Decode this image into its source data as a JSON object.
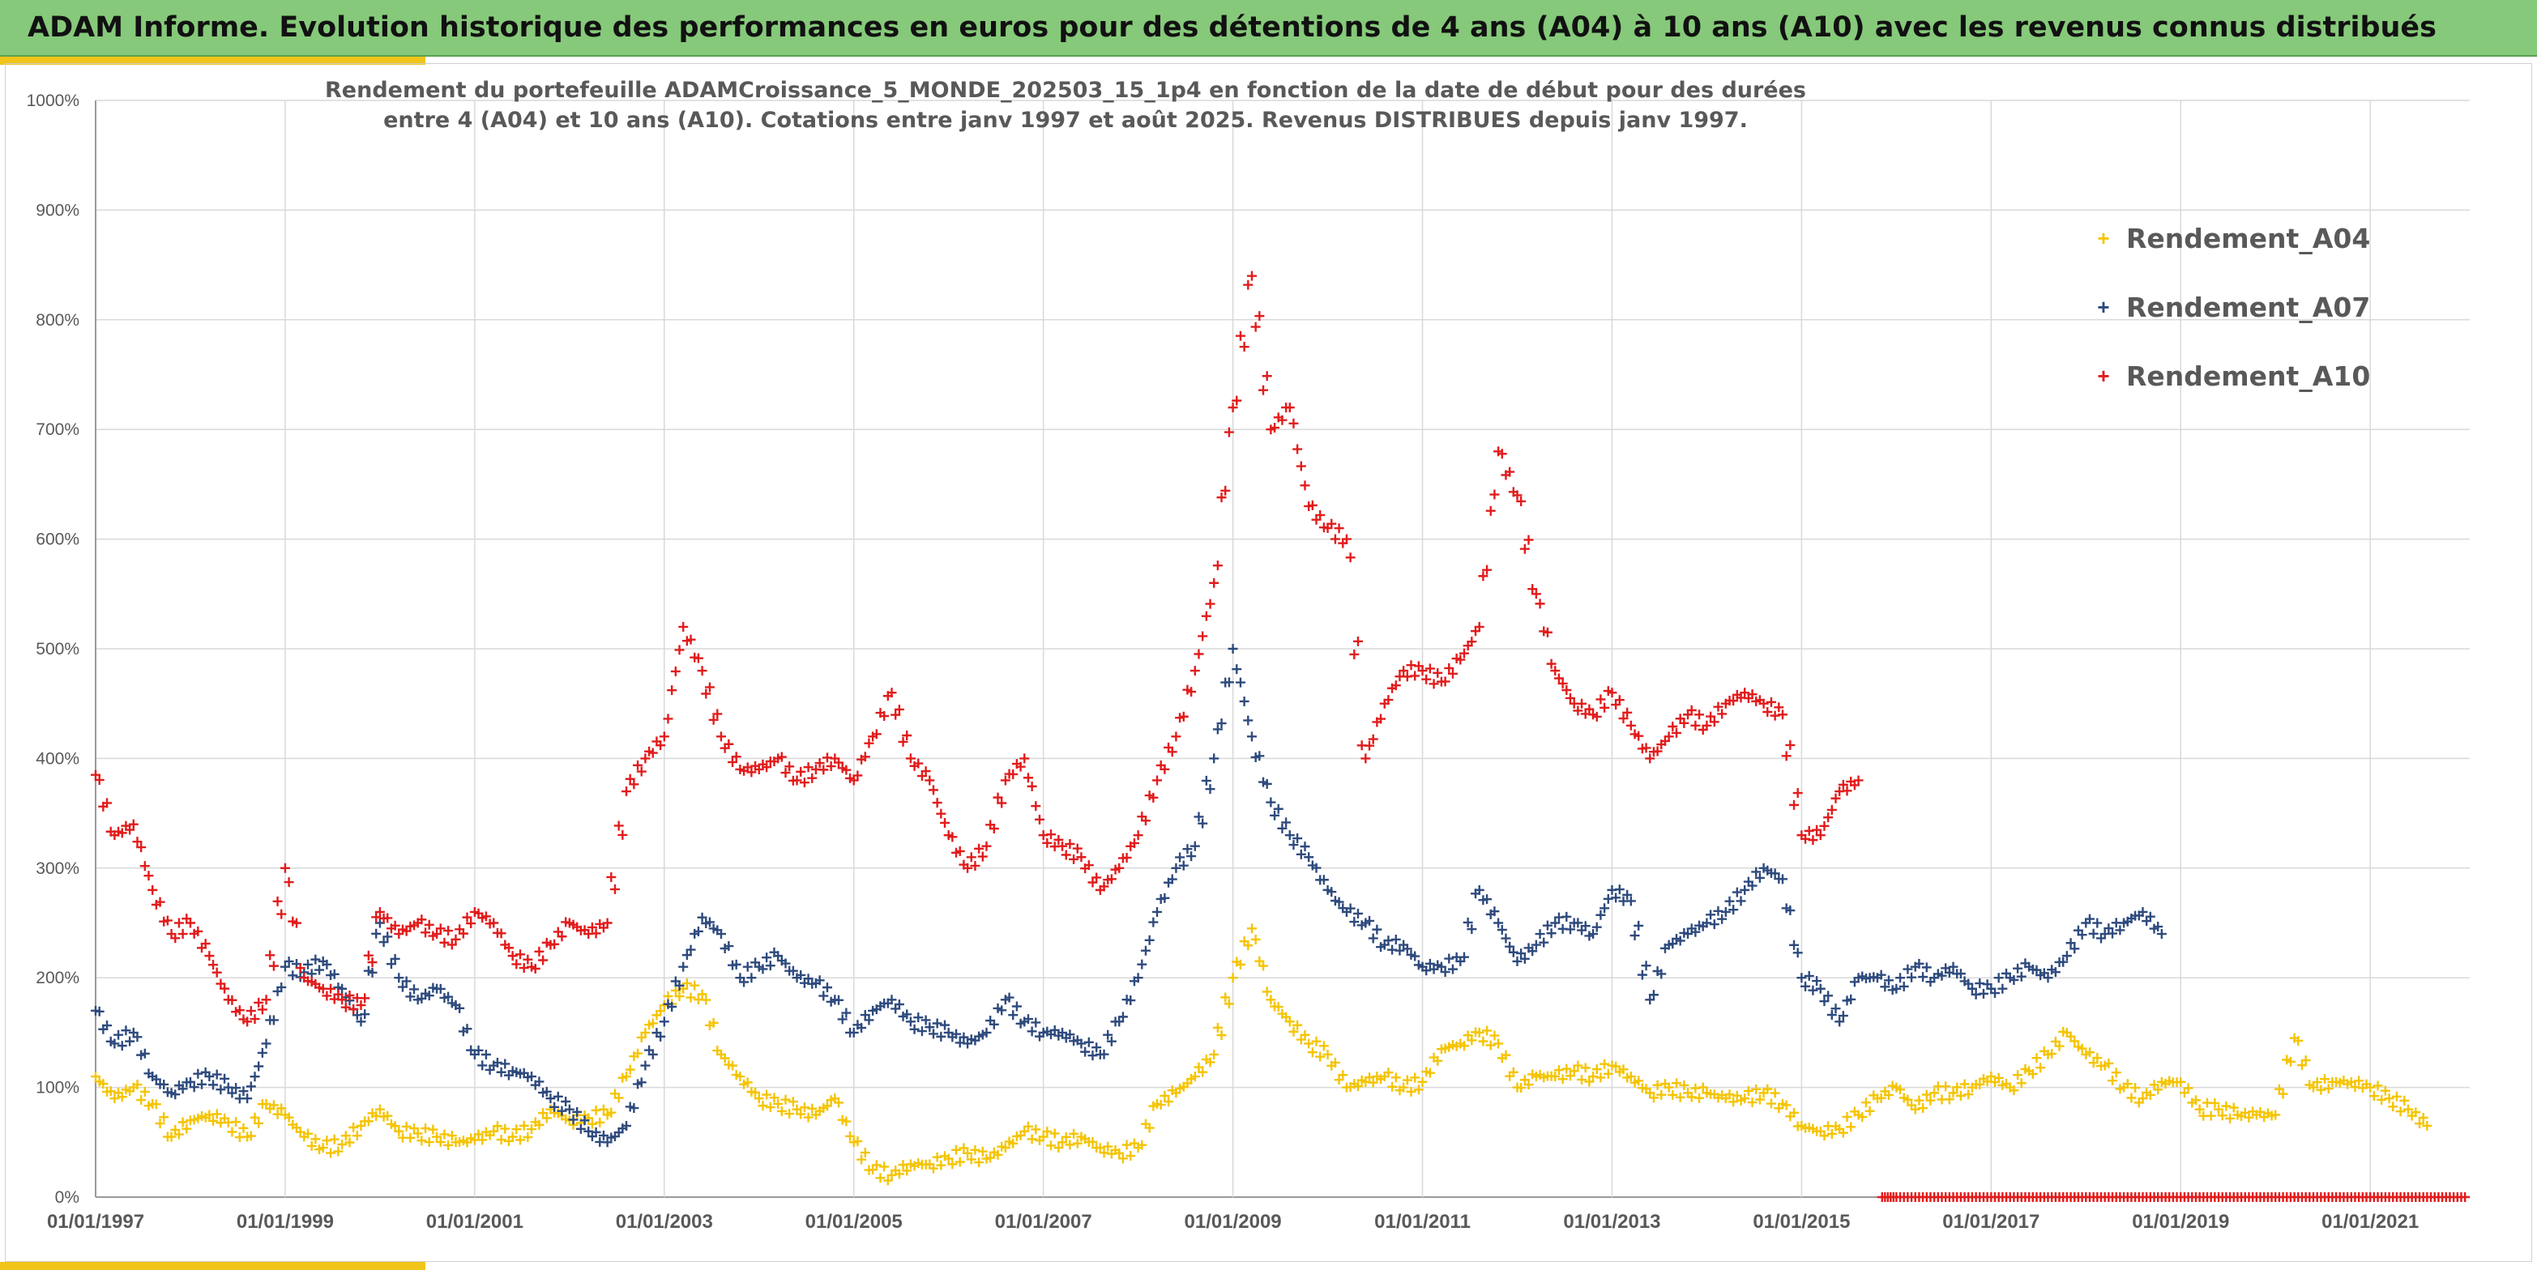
{
  "banner": {
    "title": "ADAM Informe. Evolution historique des performances en euros pour des détentions de 4 ans (A04) à 10 ans (A10) avec les revenus connus distribués",
    "background": "#86c97a",
    "accent": "#f0c419"
  },
  "chart_data": {
    "type": "scatter",
    "title_line1": "Rendement du portefeuille ADAMCroissance_5_MONDE_202503_15_1p4  en fonction de la date de début pour des durées",
    "title_line2": "entre 4 (A04) et 10 ans (A10). Cotations entre janv 1997 et août 2025. Revenus DISTRIBUES depuis janv 1997.",
    "xlim": [
      1997.0,
      2022.05
    ],
    "ylim": [
      0,
      1000
    ],
    "y_unit": "%",
    "y_ticks": [
      0,
      100,
      200,
      300,
      400,
      500,
      600,
      700,
      800,
      900,
      1000
    ],
    "y_tick_labels": [
      "0%",
      "100%",
      "200%",
      "300%",
      "400%",
      "500%",
      "600%",
      "700%",
      "800%",
      "900%",
      "1000%"
    ],
    "x_ticks": [
      1997,
      1999,
      2001,
      2003,
      2005,
      2007,
      2009,
      2011,
      2013,
      2015,
      2017,
      2019,
      2021
    ],
    "x_tick_labels": [
      "01/01/1997",
      "01/01/1999",
      "01/01/2001",
      "01/01/2003",
      "01/01/2005",
      "01/01/2007",
      "01/01/2009",
      "01/01/2011",
      "01/01/2013",
      "01/01/2015",
      "01/01/2017",
      "01/01/2019",
      "01/01/2021"
    ],
    "grid": true,
    "marker": "+",
    "legend_position": "top-right",
    "series": [
      {
        "name": "Rendement_A04",
        "color": "#f5c400",
        "x": [
          1997.0,
          1997.2,
          1997.4,
          1997.6,
          1997.8,
          1998.0,
          1998.2,
          1998.4,
          1998.6,
          1998.8,
          1999.0,
          1999.2,
          1999.4,
          1999.6,
          1999.8,
          2000.0,
          2000.2,
          2000.4,
          2000.6,
          2000.8,
          2001.0,
          2001.2,
          2001.4,
          2001.6,
          2001.8,
          2002.0,
          2002.2,
          2002.4,
          2002.6,
          2002.8,
          2003.0,
          2003.2,
          2003.4,
          2003.6,
          2003.8,
          2004.0,
          2004.2,
          2004.4,
          2004.6,
          2004.8,
          2005.0,
          2005.2,
          2005.4,
          2005.6,
          2005.8,
          2006.0,
          2006.2,
          2006.4,
          2006.6,
          2006.8,
          2007.0,
          2007.2,
          2007.4,
          2007.6,
          2007.8,
          2008.0,
          2008.2,
          2008.4,
          2008.6,
          2008.8,
          2009.0,
          2009.2,
          2009.4,
          2009.6,
          2009.8,
          2010.0,
          2010.2,
          2010.4,
          2010.6,
          2010.8,
          2011.0,
          2011.2,
          2011.4,
          2011.6,
          2011.8,
          2012.0,
          2012.2,
          2012.4,
          2012.6,
          2012.8,
          2013.0,
          2013.2,
          2013.4,
          2013.6,
          2013.8,
          2014.0,
          2014.2,
          2014.4,
          2014.6,
          2014.8,
          2015.0,
          2015.2,
          2015.4,
          2015.6,
          2015.8,
          2016.0,
          2016.2,
          2016.4,
          2016.6,
          2016.8,
          2017.0,
          2017.2,
          2017.4,
          2017.6,
          2017.8,
          2018.0,
          2018.2,
          2018.4,
          2018.6,
          2018.8,
          2019.0,
          2019.2,
          2019.4,
          2019.6,
          2019.8,
          2020.0,
          2020.2,
          2020.4,
          2020.6,
          2020.8,
          2021.0,
          2021.2,
          2021.4,
          2021.6
        ],
        "y": [
          110,
          90,
          100,
          85,
          55,
          70,
          75,
          68,
          55,
          85,
          75,
          55,
          45,
          48,
          65,
          80,
          60,
          58,
          55,
          50,
          52,
          60,
          55,
          62,
          80,
          70,
          72,
          75,
          110,
          150,
          175,
          190,
          185,
          130,
          110,
          90,
          85,
          80,
          75,
          90,
          50,
          25,
          20,
          30,
          30,
          35,
          40,
          35,
          45,
          60,
          55,
          50,
          55,
          45,
          40,
          45,
          85,
          95,
          110,
          130,
          200,
          245,
          180,
          160,
          140,
          130,
          100,
          105,
          110,
          100,
          105,
          135,
          140,
          150,
          140,
          100,
          110,
          110,
          115,
          110,
          120,
          110,
          95,
          100,
          95,
          95,
          90,
          90,
          95,
          85,
          65,
          60,
          62,
          75,
          90,
          100,
          80,
          95,
          95,
          100,
          110,
          100,
          115,
          130,
          150,
          130,
          120,
          100,
          90,
          105,
          105,
          80,
          80,
          75,
          75,
          75,
          145,
          100,
          105,
          105,
          100,
          90,
          80,
          65
        ]
      },
      {
        "name": "Rendement_A07",
        "color": "#2e4a7d",
        "x": [
          1997.0,
          1997.2,
          1997.4,
          1997.6,
          1997.8,
          1998.0,
          1998.2,
          1998.4,
          1998.6,
          1998.8,
          1999.0,
          1999.2,
          1999.4,
          1999.6,
          1999.8,
          2000.0,
          2000.2,
          2000.4,
          2000.6,
          2000.8,
          2001.0,
          2001.2,
          2001.4,
          2001.6,
          2001.8,
          2002.0,
          2002.2,
          2002.4,
          2002.6,
          2002.8,
          2003.0,
          2003.2,
          2003.4,
          2003.6,
          2003.8,
          2004.0,
          2004.2,
          2004.4,
          2004.6,
          2004.8,
          2005.0,
          2005.2,
          2005.4,
          2005.6,
          2005.8,
          2006.0,
          2006.2,
          2006.4,
          2006.6,
          2006.8,
          2007.0,
          2007.2,
          2007.4,
          2007.6,
          2007.8,
          2008.0,
          2008.2,
          2008.4,
          2008.6,
          2008.8,
          2009.0,
          2009.2,
          2009.4,
          2009.6,
          2009.8,
          2010.0,
          2010.2,
          2010.4,
          2010.6,
          2010.8,
          2011.0,
          2011.2,
          2011.4,
          2011.6,
          2011.8,
          2012.0,
          2012.2,
          2012.4,
          2012.6,
          2012.8,
          2013.0,
          2013.2,
          2013.4,
          2013.6,
          2013.8,
          2014.0,
          2014.2,
          2014.4,
          2014.6,
          2014.8,
          2015.0,
          2015.2,
          2015.4,
          2015.6,
          2015.8,
          2016.0,
          2016.2,
          2016.4,
          2016.6,
          2016.8,
          2017.0,
          2017.2,
          2017.4,
          2017.6,
          2017.8,
          2018.0,
          2018.2,
          2018.4,
          2018.6,
          2018.8
        ],
        "y": [
          170,
          140,
          150,
          110,
          95,
          105,
          110,
          100,
          90,
          140,
          210,
          205,
          215,
          190,
          160,
          250,
          200,
          180,
          190,
          175,
          130,
          120,
          115,
          110,
          90,
          80,
          60,
          50,
          65,
          120,
          160,
          210,
          255,
          240,
          200,
          210,
          220,
          200,
          195,
          180,
          150,
          170,
          180,
          160,
          155,
          150,
          140,
          150,
          180,
          160,
          150,
          150,
          140,
          130,
          160,
          200,
          260,
          300,
          320,
          400,
          500,
          420,
          360,
          330,
          310,
          280,
          260,
          250,
          230,
          230,
          210,
          210,
          215,
          280,
          250,
          215,
          230,
          250,
          250,
          240,
          280,
          270,
          180,
          230,
          240,
          250,
          260,
          280,
          300,
          290,
          200,
          190,
          160,
          200,
          200,
          190,
          210,
          200,
          210,
          190,
          190,
          200,
          210,
          200,
          220,
          250,
          240,
          250,
          260,
          240
        ]
      },
      {
        "name": "Rendement_A10",
        "color": "#e21b1b",
        "x": [
          1997.0,
          1997.2,
          1997.4,
          1997.6,
          1997.8,
          1998.0,
          1998.2,
          1998.4,
          1998.6,
          1998.8,
          1999.0,
          1999.2,
          1999.4,
          1999.6,
          1999.8,
          2000.0,
          2000.2,
          2000.4,
          2000.6,
          2000.8,
          2001.0,
          2001.2,
          2001.4,
          2001.6,
          2001.8,
          2002.0,
          2002.2,
          2002.4,
          2002.6,
          2002.8,
          2003.0,
          2003.2,
          2003.4,
          2003.6,
          2003.8,
          2004.0,
          2004.2,
          2004.4,
          2004.6,
          2004.8,
          2005.0,
          2005.2,
          2005.4,
          2005.6,
          2005.8,
          2006.0,
          2006.2,
          2006.4,
          2006.6,
          2006.8,
          2007.0,
          2007.2,
          2007.4,
          2007.6,
          2007.8,
          2008.0,
          2008.2,
          2008.4,
          2008.6,
          2008.8,
          2009.0,
          2009.2,
          2009.4,
          2009.6,
          2009.8,
          2010.0,
          2010.2,
          2010.4,
          2010.6,
          2010.8,
          2011.0,
          2011.2,
          2011.4,
          2011.6,
          2011.8,
          2012.0,
          2012.2,
          2012.4,
          2012.6,
          2012.8,
          2013.0,
          2013.2,
          2013.4,
          2013.6,
          2013.8,
          2014.0,
          2014.2,
          2014.4,
          2014.6,
          2014.8,
          2015.0,
          2015.2,
          2015.4,
          2015.6
        ],
        "y": [
          385,
          330,
          340,
          280,
          240,
          250,
          220,
          180,
          160,
          180,
          300,
          200,
          190,
          180,
          175,
          260,
          240,
          250,
          240,
          235,
          260,
          250,
          220,
          210,
          230,
          250,
          240,
          250,
          370,
          400,
          420,
          520,
          480,
          420,
          390,
          390,
          400,
          380,
          390,
          400,
          380,
          420,
          460,
          400,
          380,
          330,
          300,
          320,
          380,
          400,
          330,
          320,
          310,
          280,
          300,
          330,
          380,
          420,
          480,
          560,
          720,
          840,
          700,
          720,
          630,
          610,
          600,
          400,
          450,
          480,
          480,
          470,
          490,
          520,
          680,
          640,
          550,
          480,
          450,
          440,
          460,
          430,
          400,
          420,
          440,
          430,
          450,
          460,
          450,
          440,
          330,
          330,
          370,
          380
        ]
      },
      {
        "name": "",
        "color": "#e21b1b",
        "x": [
          2015.85,
          2016.0,
          2016.2,
          2016.4,
          2016.6,
          2016.8,
          2017.0,
          2017.2,
          2017.4,
          2017.6,
          2017.8,
          2018.0,
          2018.2,
          2018.4,
          2018.6,
          2018.8,
          2019.0,
          2019.2,
          2019.4,
          2019.6,
          2019.8,
          2020.0,
          2020.2,
          2020.4,
          2020.6,
          2020.8,
          2021.0,
          2021.2,
          2021.4,
          2021.6,
          2021.8,
          2022.0
        ],
        "y": [
          0,
          0,
          0,
          0,
          0,
          0,
          0,
          0,
          0,
          0,
          0,
          0,
          0,
          0,
          0,
          0,
          0,
          0,
          0,
          0,
          0,
          0,
          0,
          0,
          0,
          0,
          0,
          0,
          0,
          0,
          0,
          0
        ]
      }
    ]
  }
}
